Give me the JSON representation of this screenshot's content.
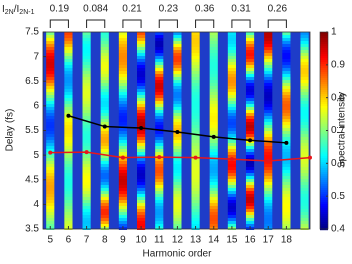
{
  "chart_data": {
    "type": "line",
    "x_label": "Harmonic order",
    "y_label": "Delay (fs)",
    "xlim": [
      4.6,
      19.3
    ],
    "xticks": [
      5,
      6,
      7,
      8,
      9,
      10,
      11,
      12,
      13,
      14,
      15,
      16,
      17,
      18
    ],
    "ylim": [
      3.5,
      7.5
    ],
    "yticks": [
      3.5,
      4,
      4.5,
      5,
      5.5,
      6,
      6.5,
      7,
      7.5
    ],
    "harmonics": [
      5,
      6,
      7,
      8,
      9,
      10,
      11,
      12,
      13,
      14,
      15,
      16,
      17,
      18,
      19
    ],
    "series": [
      {
        "color": "#000000",
        "x": [
          6,
          8,
          10,
          12,
          14,
          16,
          18
        ],
        "values": [
          5.8,
          5.58,
          5.55,
          5.47,
          5.37,
          5.3,
          5.25
        ]
      },
      {
        "color": "#e8151b",
        "x": [
          5,
          7,
          9,
          11,
          13,
          15,
          17,
          19.3
        ],
        "values": [
          5.05,
          5.06,
          4.95,
          4.96,
          4.95,
          4.92,
          4.88,
          4.95
        ]
      }
    ],
    "ratio_label": [
      "I",
      "2N",
      "/I",
      "2N-1"
    ],
    "ratios": {
      "pairs": [
        [
          5,
          6
        ],
        [
          7,
          8
        ],
        [
          9,
          10
        ],
        [
          11,
          12
        ],
        [
          13,
          14
        ],
        [
          15,
          16
        ],
        [
          17,
          18
        ]
      ],
      "values": [
        0.19,
        0.084,
        0.21,
        0.23,
        0.36,
        0.31,
        0.26
      ]
    },
    "colorbar": {
      "label": "Spectral intensity",
      "lim": [
        0.4,
        1
      ],
      "ticks": [
        0.4,
        0.5,
        0.6,
        0.7,
        0.8,
        0.9,
        1
      ]
    }
  }
}
